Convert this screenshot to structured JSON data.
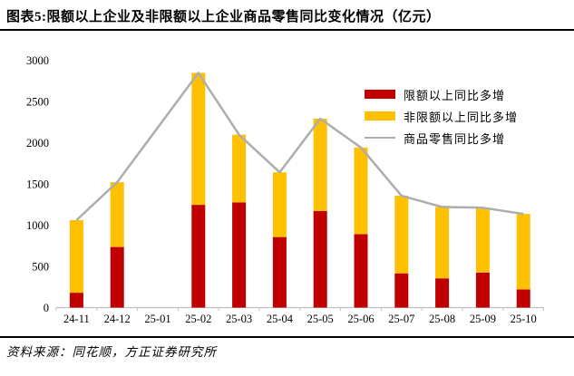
{
  "header": {
    "title": "图表5:限额以上企业及非限额以上企业商品零售同比变化情况（亿元）"
  },
  "footer": {
    "source": "资料来源：同花顺，方正证券研究所"
  },
  "colors": {
    "limit_above_red": "#C00000",
    "non_limit_yellow": "#FFC000",
    "total_line_gray": "#ADADAD",
    "axis_gray": "#BFBFBF",
    "rule_black": "#000000"
  },
  "chart_data": {
    "type": "bar",
    "subtype": "stacked-bars-with-total-line",
    "title": "限额以上企业及非限额以上企业商品零售同比变化情况（亿元）",
    "categories": [
      "24-11",
      "24-12",
      "25-01",
      "25-02",
      "25-03",
      "25-04",
      "25-05",
      "25-06",
      "25-07",
      "25-08",
      "25-09",
      "25-10"
    ],
    "series": [
      {
        "name": "限额以上同比多增",
        "type": "bar",
        "color": "#C00000",
        "values": [
          180,
          735,
          null,
          1245,
          1275,
          855,
          1170,
          890,
          415,
          355,
          425,
          220
        ]
      },
      {
        "name": "非限额以上同比多增",
        "type": "bar",
        "color": "#FFC000",
        "values": [
          880,
          785,
          null,
          1600,
          820,
          785,
          1120,
          1050,
          940,
          865,
          785,
          915
        ]
      },
      {
        "name": "商品零售同比多增",
        "type": "line",
        "color": "#ADADAD",
        "values": [
          1060,
          1520,
          null,
          2845,
          2095,
          1640,
          2290,
          1940,
          1355,
          1220,
          1210,
          1135
        ]
      }
    ],
    "xlabel": "",
    "ylabel": "",
    "ylim": [
      0,
      3000
    ],
    "ytick_step": 500,
    "axis_color": "#BFBFBF",
    "grid": false,
    "legend_position": "top-right",
    "missing_categories": [
      "25-01"
    ]
  }
}
